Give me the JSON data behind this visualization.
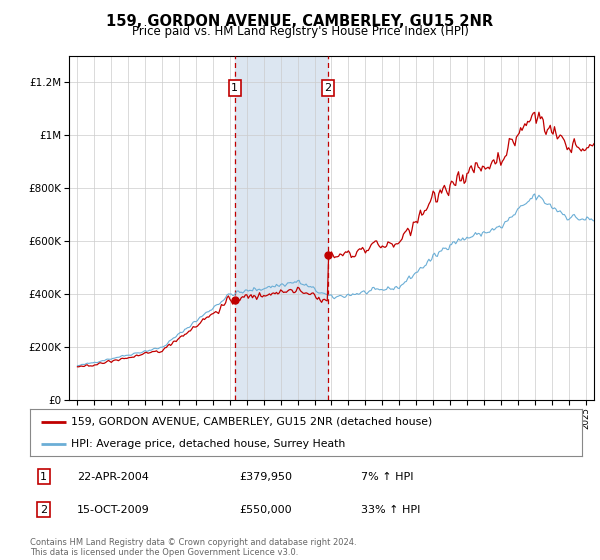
{
  "title": "159, GORDON AVENUE, CAMBERLEY, GU15 2NR",
  "subtitle": "Price paid vs. HM Land Registry's House Price Index (HPI)",
  "legend_line1": "159, GORDON AVENUE, CAMBERLEY, GU15 2NR (detached house)",
  "legend_line2": "HPI: Average price, detached house, Surrey Heath",
  "transaction1_date": "22-APR-2004",
  "transaction1_price": "£379,950",
  "transaction1_pct": "7% ↑ HPI",
  "transaction1_year": 2004.29,
  "transaction1_value": 379950,
  "transaction2_date": "15-OCT-2009",
  "transaction2_price": "£550,000",
  "transaction2_pct": "33% ↑ HPI",
  "transaction2_year": 2009.79,
  "transaction2_value": 550000,
  "footnote": "Contains HM Land Registry data © Crown copyright and database right 2024.\nThis data is licensed under the Open Government Licence v3.0.",
  "hpi_color": "#6baed6",
  "price_color": "#c00000",
  "highlight_color": "#dce6f1",
  "marker_box_color": "#c00000",
  "ylim_min": 0,
  "ylim_max": 1300000,
  "xlim_min": 1994.5,
  "xlim_max": 2025.5,
  "background_color": "#ffffff",
  "yticks": [
    0,
    200000,
    400000,
    600000,
    800000,
    1000000,
    1200000
  ],
  "ylabel_1M": "£1M",
  "ylabel_12M": "£1.2M"
}
